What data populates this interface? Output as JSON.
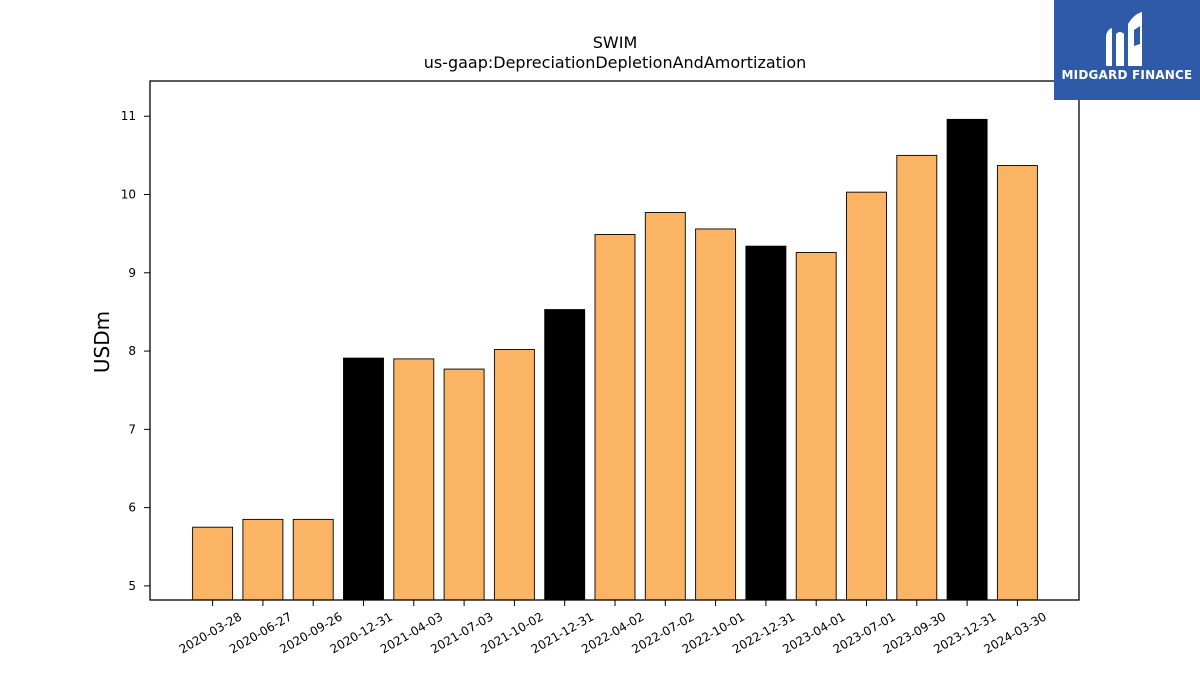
{
  "logo": {
    "text": "MIDGARD FINANCE",
    "background_color": "#2f5aa7",
    "icon": "midgard-m-logo-icon"
  },
  "chart_data": {
    "type": "bar",
    "title": "SWIM",
    "subtitle": "us-gaap:DepreciationDepletionAndAmortization",
    "xlabel": "",
    "ylabel": "USDm",
    "ylim": [
      4.82,
      11.45
    ],
    "yticks": [
      5,
      6,
      7,
      8,
      9,
      10,
      11
    ],
    "grid": false,
    "legend": "none",
    "colors": {
      "quarter": "#fbb463",
      "year_end": "#000000",
      "edge": "#000000"
    },
    "categories": [
      "2020-03-28",
      "2020-06-27",
      "2020-09-26",
      "2020-12-31",
      "2021-04-03",
      "2021-07-03",
      "2021-10-02",
      "2021-12-31",
      "2022-04-02",
      "2022-07-02",
      "2022-10-01",
      "2022-12-31",
      "2023-04-01",
      "2023-07-01",
      "2023-09-30",
      "2023-12-31",
      "2024-03-30"
    ],
    "values": [
      5.75,
      5.85,
      5.85,
      7.91,
      7.9,
      7.77,
      8.02,
      8.53,
      9.49,
      9.77,
      9.56,
      9.34,
      9.26,
      10.03,
      10.5,
      10.96,
      10.37
    ],
    "highlight": [
      false,
      false,
      false,
      true,
      false,
      false,
      false,
      true,
      false,
      false,
      false,
      true,
      false,
      false,
      false,
      true,
      false
    ]
  }
}
